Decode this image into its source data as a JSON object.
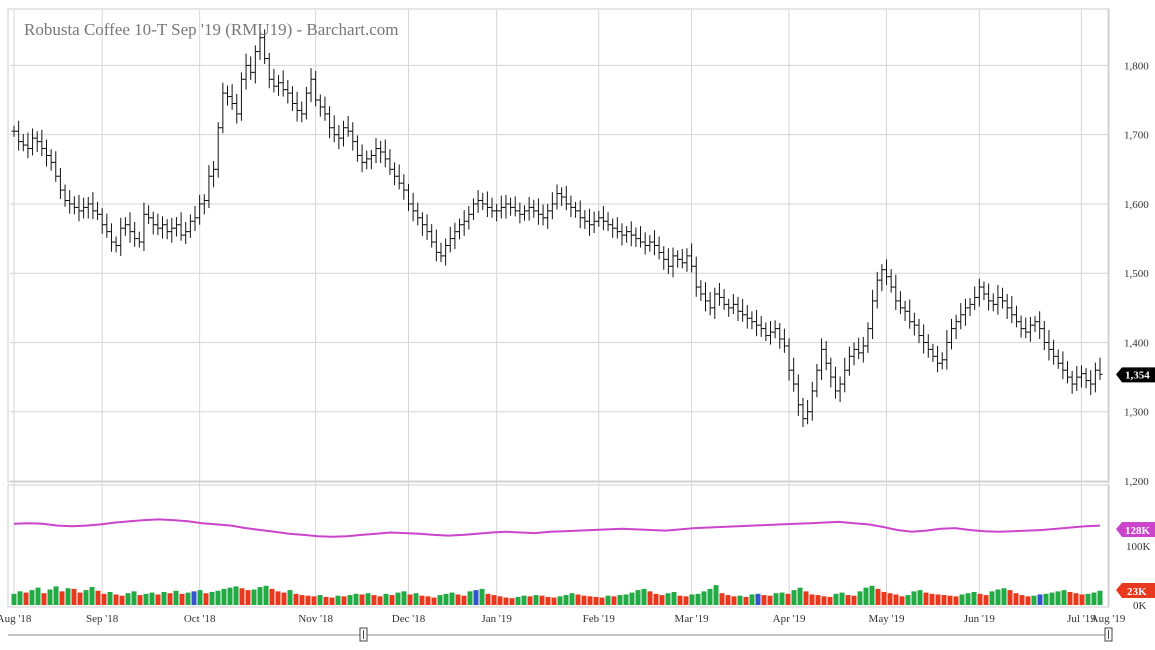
{
  "chart_data": {
    "type": "ohlc",
    "title": "Robusta Coffee 10-T Sep '19 (RMU19) - Barchart.com",
    "price_axis": {
      "ticks": [
        1800,
        1700,
        1600,
        1500,
        1400,
        1300,
        1200
      ],
      "tick_labels": [
        "1,800",
        "1,700",
        "1,600",
        "1,500",
        "1,400",
        "1,300",
        "1,200"
      ],
      "ylim": [
        1200,
        1880
      ]
    },
    "last_price": {
      "value": 1354,
      "label": "1,354",
      "color": "#000000"
    },
    "x_axis": {
      "labels": [
        "Aug '18",
        "Sep '18",
        "Oct '18",
        "Nov '18",
        "Dec '18",
        "Jan '19",
        "Feb '19",
        "Mar '19",
        "Apr '19",
        "May '19",
        "Jun '19",
        "Jul '19",
        "Aug '19"
      ]
    },
    "price_series": [
      {
        "name": "Aug '18",
        "values": [
          1705,
          1690,
          1685,
          1680,
          1695,
          1690,
          1680,
          1670,
          1660,
          1640,
          1620,
          1605,
          1600,
          1595,
          1590,
          1595,
          1600,
          1590,
          1585
        ]
      },
      {
        "name": "Sep '18",
        "values": [
          1570,
          1560,
          1545,
          1540,
          1565,
          1570,
          1560,
          1550,
          1545,
          1585,
          1580,
          1570,
          1565,
          1570,
          1560,
          1565,
          1570,
          1555,
          1560,
          1575,
          1580
        ]
      },
      {
        "name": "Oct '18",
        "values": [
          1600,
          1605,
          1640,
          1650,
          1710,
          1760,
          1755,
          1745,
          1730,
          1780,
          1800,
          1790,
          1820,
          1840,
          1810,
          1780,
          1770,
          1775,
          1765,
          1760,
          1745,
          1735,
          1730,
          1760,
          1780
        ]
      },
      {
        "name": "Nov '18",
        "values": [
          1750,
          1740,
          1730,
          1710,
          1700,
          1695,
          1710,
          1705,
          1690,
          1670,
          1660,
          1665,
          1670,
          1680,
          1675,
          1665,
          1650,
          1640,
          1630,
          1620
        ]
      },
      {
        "name": "Dec '18",
        "values": [
          1600,
          1590,
          1580,
          1570,
          1560,
          1545,
          1530,
          1525,
          1540,
          1550,
          1560,
          1570,
          1575,
          1585,
          1600,
          1605,
          1600,
          1595,
          1590
        ]
      },
      {
        "name": "Jan '19",
        "values": [
          1590,
          1595,
          1600,
          1595,
          1590,
          1585,
          1590,
          1595,
          1590,
          1585,
          1580,
          1590,
          1600,
          1615,
          1610,
          1600,
          1595,
          1590,
          1580,
          1575,
          1570,
          1575
        ]
      },
      {
        "name": "Feb '19",
        "values": [
          1580,
          1575,
          1570,
          1565,
          1560,
          1555,
          1560,
          1555,
          1550,
          1545,
          1540,
          1545,
          1540,
          1530,
          1520,
          1510,
          1525,
          1520,
          1515,
          1525
        ]
      },
      {
        "name": "Mar '19",
        "values": [
          1510,
          1480,
          1470,
          1460,
          1450,
          1470,
          1465,
          1455,
          1450,
          1455,
          1445,
          1440,
          1435,
          1430,
          1425,
          1420,
          1410,
          1415,
          1420,
          1405,
          1395
        ]
      },
      {
        "name": "Apr '19",
        "values": [
          1360,
          1340,
          1310,
          1290,
          1300,
          1330,
          1360,
          1390,
          1370,
          1350,
          1330,
          1340,
          1360,
          1380,
          1390,
          1385,
          1395,
          1420,
          1460,
          1490,
          1505
        ]
      },
      {
        "name": "May '19",
        "values": [
          1495,
          1480,
          1460,
          1450,
          1445,
          1430,
          1425,
          1410,
          1400,
          1390,
          1380,
          1370,
          1375,
          1400,
          1420,
          1430,
          1440,
          1450,
          1455,
          1465
        ]
      },
      {
        "name": "Jun '19",
        "values": [
          1480,
          1470,
          1460,
          1455,
          1465,
          1460,
          1450,
          1440,
          1430,
          1420,
          1415,
          1425,
          1430,
          1420,
          1400,
          1390,
          1380,
          1370,
          1360,
          1350,
          1340,
          1350
        ]
      },
      {
        "name": "Jul '19",
        "values": [
          1355,
          1345,
          1340,
          1360,
          1354
        ]
      }
    ],
    "volume_panel": {
      "axis_labels": [
        "100K",
        "0K"
      ],
      "oi_label": "128K",
      "oi_color": "#cc44cc",
      "volume_label": "23K",
      "volume_color": "#e8391e",
      "up_color": "#22aa44",
      "down_color": "#e8391e",
      "neutral_color": "#3355cc"
    },
    "volume_k": [
      18,
      22,
      20,
      24,
      28,
      19,
      25,
      30,
      22,
      27,
      26,
      20,
      24,
      29,
      23,
      18,
      21,
      17,
      15,
      19,
      22,
      16,
      18,
      20,
      17,
      21,
      19,
      23,
      18,
      20,
      22,
      24,
      19,
      21,
      23,
      26,
      28,
      30,
      27,
      24,
      25,
      29,
      31,
      26,
      22,
      20,
      24,
      18,
      16,
      15,
      14,
      16,
      13,
      12,
      15,
      14,
      16,
      18,
      17,
      19,
      16,
      14,
      18,
      16,
      20,
      22,
      17,
      19,
      15,
      14,
      12,
      16,
      18,
      20,
      17,
      15,
      22,
      24,
      26,
      18,
      16,
      14,
      12,
      11,
      13,
      15,
      14,
      16,
      15,
      13,
      12,
      14,
      16,
      19,
      17,
      15,
      14,
      13,
      12,
      15,
      14,
      16,
      17,
      20,
      24,
      26,
      22,
      18,
      16,
      19,
      21,
      15,
      14,
      17,
      18,
      22,
      26,
      32,
      19,
      16,
      14,
      15,
      13,
      17,
      18,
      16,
      15,
      19,
      20,
      18,
      24,
      28,
      22,
      17,
      16,
      14,
      13,
      18,
      20,
      16,
      15,
      22,
      28,
      31,
      26,
      21,
      19,
      17,
      14,
      16,
      22,
      24,
      20,
      18,
      17,
      16,
      15,
      14,
      17,
      19,
      21,
      18,
      16,
      22,
      25,
      27,
      24,
      19,
      16,
      14,
      15,
      17,
      18,
      20,
      22,
      24,
      21,
      19,
      17,
      18,
      20,
      23
    ],
    "open_interest_k": [
      131,
      132,
      131,
      128,
      127,
      128,
      130,
      133,
      135,
      137,
      138,
      137,
      135,
      132,
      130,
      128,
      124,
      121,
      118,
      115,
      113,
      111,
      110,
      111,
      113,
      115,
      117,
      116,
      115,
      113,
      112,
      113,
      115,
      117,
      118,
      117,
      116,
      118,
      119,
      120,
      121,
      122,
      123,
      122,
      121,
      120,
      122,
      124,
      125,
      126,
      127,
      128,
      129,
      130,
      131,
      132,
      133,
      134,
      132,
      130,
      126,
      121,
      118,
      120,
      123,
      124,
      121,
      119,
      118,
      119,
      120,
      121,
      123,
      125,
      127,
      128
    ]
  }
}
